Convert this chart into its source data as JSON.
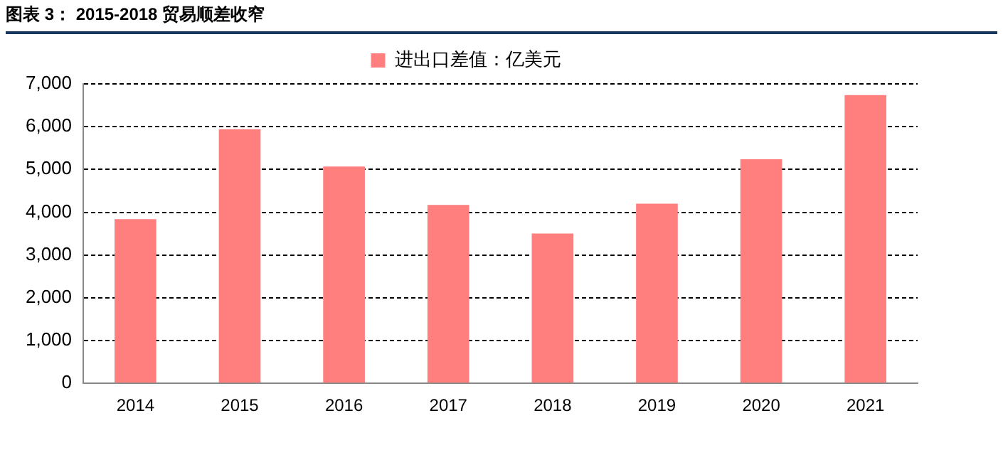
{
  "chart_data": {
    "type": "bar",
    "title": "图表 3：  2015-2018 贸易顺差收窄",
    "categories": [
      "2014",
      "2015",
      "2016",
      "2017",
      "2018",
      "2019",
      "2020",
      "2021"
    ],
    "series": [
      {
        "name": "进出口差值：亿美元",
        "color": "#ff7f7f",
        "values": [
          3840,
          5940,
          5070,
          4170,
          3500,
          4200,
          5240,
          6740
        ]
      }
    ],
    "ylim": [
      0,
      7000
    ],
    "yticks": [
      {
        "value": 0,
        "label": "0"
      },
      {
        "value": 1000,
        "label": "1,000"
      },
      {
        "value": 2000,
        "label": "2,000"
      },
      {
        "value": 3000,
        "label": "3,000"
      },
      {
        "value": 4000,
        "label": "4,000"
      },
      {
        "value": 5000,
        "label": "5,000"
      },
      {
        "value": 6000,
        "label": "6,000"
      },
      {
        "value": 7000,
        "label": "7,000"
      }
    ],
    "grid": "y",
    "legend": "top"
  }
}
